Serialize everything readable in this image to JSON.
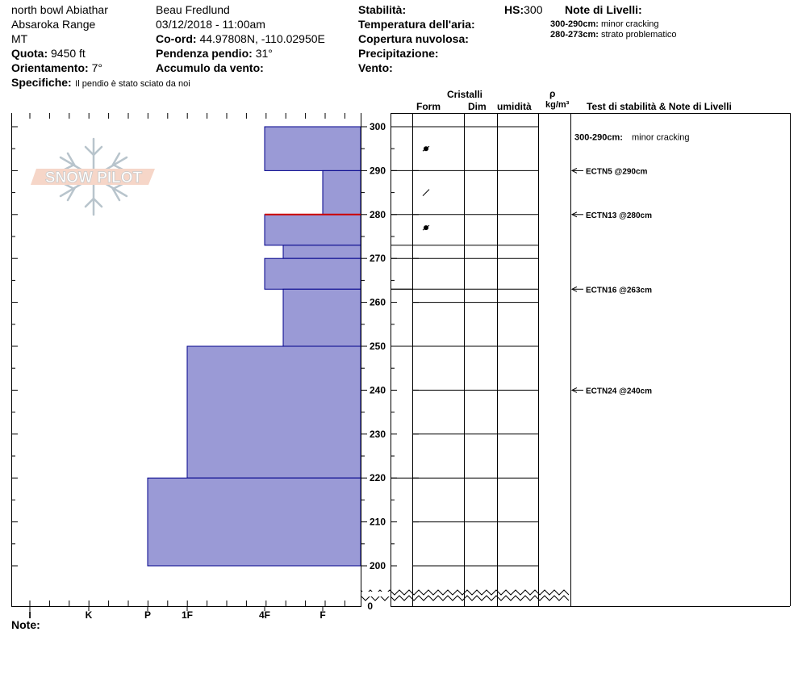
{
  "header": {
    "location": "north bowl Abiathar",
    "range": "Absaroka Range",
    "state": "MT",
    "elevation_label": "Quota:",
    "elevation_value": "9450 ft",
    "aspect_label": "Orientamento:",
    "aspect_value": "7°",
    "specifics_label": "Specifiche:",
    "specifics_value": "Il pendio è stato sciato da noi",
    "observer": "Beau  Fredlund",
    "datetime": "03/12/2018 - 11:00am",
    "coord_label": "Co-ord:",
    "coord_value": "44.97808N, -110.02950E",
    "slope_label": "Pendenza pendio:",
    "slope_value": "31°",
    "wind_loading_label": "Accumulo da vento:",
    "stability_label": "Stabilità:",
    "air_temp_label": "Temperatura dell'aria:",
    "sky_label": "Copertura nuvolosa:",
    "precip_label": "Precipitazione:",
    "wind_label": "Vento:",
    "hs_label": "HS:",
    "hs_value": "300",
    "layer_notes_title": "Note di Livelli:",
    "layer_notes": [
      {
        "range": "300-290cm:",
        "text": "minor cracking"
      },
      {
        "range": "280-273cm:",
        "text": "strato problematico"
      }
    ]
  },
  "columns": {
    "crystals": "Cristalli",
    "form": "Form",
    "size": "Dim",
    "moisture": "umidità",
    "rho": "ρ",
    "density_unit": "kg/m³",
    "stability_header": "Test di stabilità & Note di Livelli"
  },
  "footer": {
    "note_label": "Note:"
  },
  "logo": {
    "text": "SNOW PILOT"
  },
  "colors": {
    "layer_fill": "#9a9ad6",
    "layer_stroke": "#00008b",
    "problem_layer": "#cc0000"
  },
  "chart_data": {
    "type": "bar",
    "orientation": "horizontal",
    "x_axis": "hand hardness",
    "hardness_ticks": [
      "I",
      "K",
      "P",
      "1F",
      "4F",
      "F"
    ],
    "y_ticks": [
      0,
      200,
      210,
      220,
      230,
      240,
      250,
      260,
      270,
      280,
      290,
      300
    ],
    "ylim": [
      200,
      300
    ],
    "axis_break": true,
    "layers": [
      {
        "top": 300,
        "bottom": 290,
        "hardness": "4F"
      },
      {
        "top": 290,
        "bottom": 280,
        "hardness": "F"
      },
      {
        "top": 280,
        "bottom": 273,
        "hardness": "4F",
        "problem": true
      },
      {
        "top": 273,
        "bottom": 270,
        "hardness": "4F-"
      },
      {
        "top": 270,
        "bottom": 263,
        "hardness": "4F"
      },
      {
        "top": 263,
        "bottom": 250,
        "hardness": "4F-"
      },
      {
        "top": 250,
        "bottom": 220,
        "hardness": "1F"
      },
      {
        "top": 220,
        "bottom": 200,
        "hardness": "P"
      }
    ],
    "crystal_symbols": [
      {
        "height": 295,
        "symbol": "dot"
      },
      {
        "height": 285,
        "symbol": "slash"
      },
      {
        "height": 277,
        "symbol": "dot"
      }
    ],
    "stability_tests": [
      {
        "height": 290,
        "label": "ECTN5 @290cm"
      },
      {
        "height": 280,
        "label": "ECTN13 @280cm"
      },
      {
        "height": 263,
        "label": "ECTN16 @263cm"
      },
      {
        "height": 240,
        "label": "ECTN24 @240cm"
      }
    ],
    "range_notes": [
      {
        "label": "300-290cm:",
        "text": "minor cracking"
      }
    ]
  }
}
